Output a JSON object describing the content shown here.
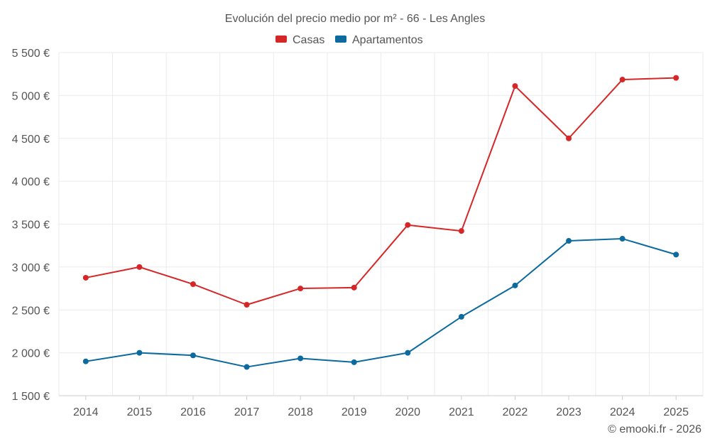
{
  "chart_data": {
    "type": "line",
    "title": "Evolución del precio medio por m² - 66 - Les Angles",
    "categories": [
      "2014",
      "2015",
      "2016",
      "2017",
      "2018",
      "2019",
      "2020",
      "2021",
      "2022",
      "2023",
      "2024",
      "2025"
    ],
    "series": [
      {
        "name": "Casas",
        "color": "#d62728",
        "values": [
          2875,
          3000,
          2800,
          2560,
          2750,
          2760,
          3490,
          3420,
          5110,
          4500,
          5185,
          5205
        ]
      },
      {
        "name": "Apartamentos",
        "color": "#0c6a9e",
        "values": [
          1900,
          2000,
          1970,
          1835,
          1935,
          1890,
          2000,
          2420,
          2785,
          3305,
          3330,
          3145
        ]
      }
    ],
    "ylim": [
      1500,
      5500
    ],
    "yticks": [
      {
        "value": 1500,
        "label": "1 500 €"
      },
      {
        "value": 2000,
        "label": "2 000 €"
      },
      {
        "value": 2500,
        "label": "2 500 €"
      },
      {
        "value": 3000,
        "label": "3 000 €"
      },
      {
        "value": 3500,
        "label": "3 500 €"
      },
      {
        "value": 4000,
        "label": "4 000 €"
      },
      {
        "value": 4500,
        "label": "4 500 €"
      },
      {
        "value": 5000,
        "label": "5 000 €"
      },
      {
        "value": 5500,
        "label": "5 500 €"
      }
    ],
    "xlabel": "",
    "ylabel": "",
    "grid": true,
    "legend_position": "top-center",
    "credit": "© emooki.fr - 2026"
  }
}
